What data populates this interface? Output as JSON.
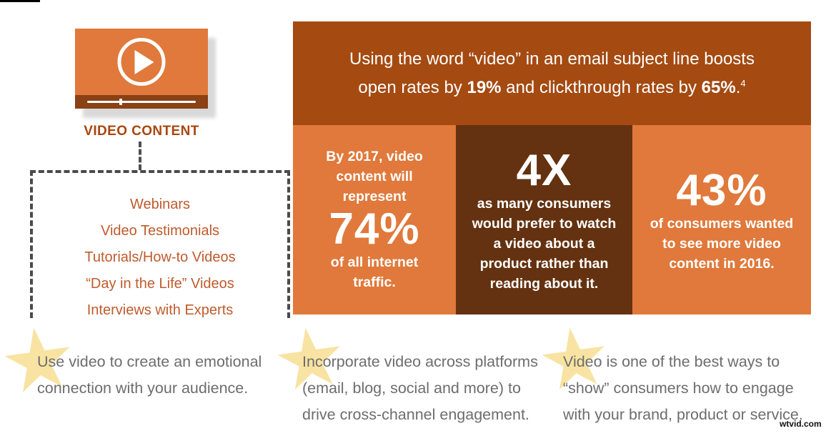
{
  "page": {
    "watermark": "wtvid.com"
  },
  "colors": {
    "light_orange": "#e0793b",
    "banner_rust": "#a54a11",
    "dark_brown": "#643210",
    "player_bar_brown": "#8a4115",
    "label_orange": "#a8470f",
    "list_orange": "#bf5b2d",
    "tip_gray": "#6d6d6d",
    "star_yellow": "#f8e3a2",
    "dash_gray": "#4a4a4a"
  },
  "icons": {
    "play": "▶",
    "star": "★"
  },
  "player": {
    "label": "VIDEO CONTENT"
  },
  "video_types": {
    "items": [
      "Webinars",
      "Video Testimonials",
      "Tutorials/How-to Videos",
      "“Day in the Life” Videos",
      "Interviews with Experts"
    ]
  },
  "banner": {
    "line1": "Using the word “video” in an email subject line boosts",
    "line2": {
      "pre": "open rates by ",
      "stat1": "19%",
      "mid": " and clickthrough rates by ",
      "stat2": "65%",
      "end": ".",
      "footnote": "4"
    }
  },
  "stats": [
    {
      "pre": "By 2017, video content will represent",
      "big": "74%",
      "post": "of all internet traffic."
    },
    {
      "big": "4X",
      "post": "as many consumers would prefer to watch a video about a product rather than reading about it."
    },
    {
      "big": "43%",
      "post": "of consumers wanted to see more video content in 2016."
    }
  ],
  "tips": [
    "Use video to create an emotional connection with your audience.",
    "Incorporate video across platforms (email, blog, social and more) to drive cross-channel engagement.",
    "Video is one of the best ways to “show” consumers how to engage with your brand, product or service."
  ]
}
